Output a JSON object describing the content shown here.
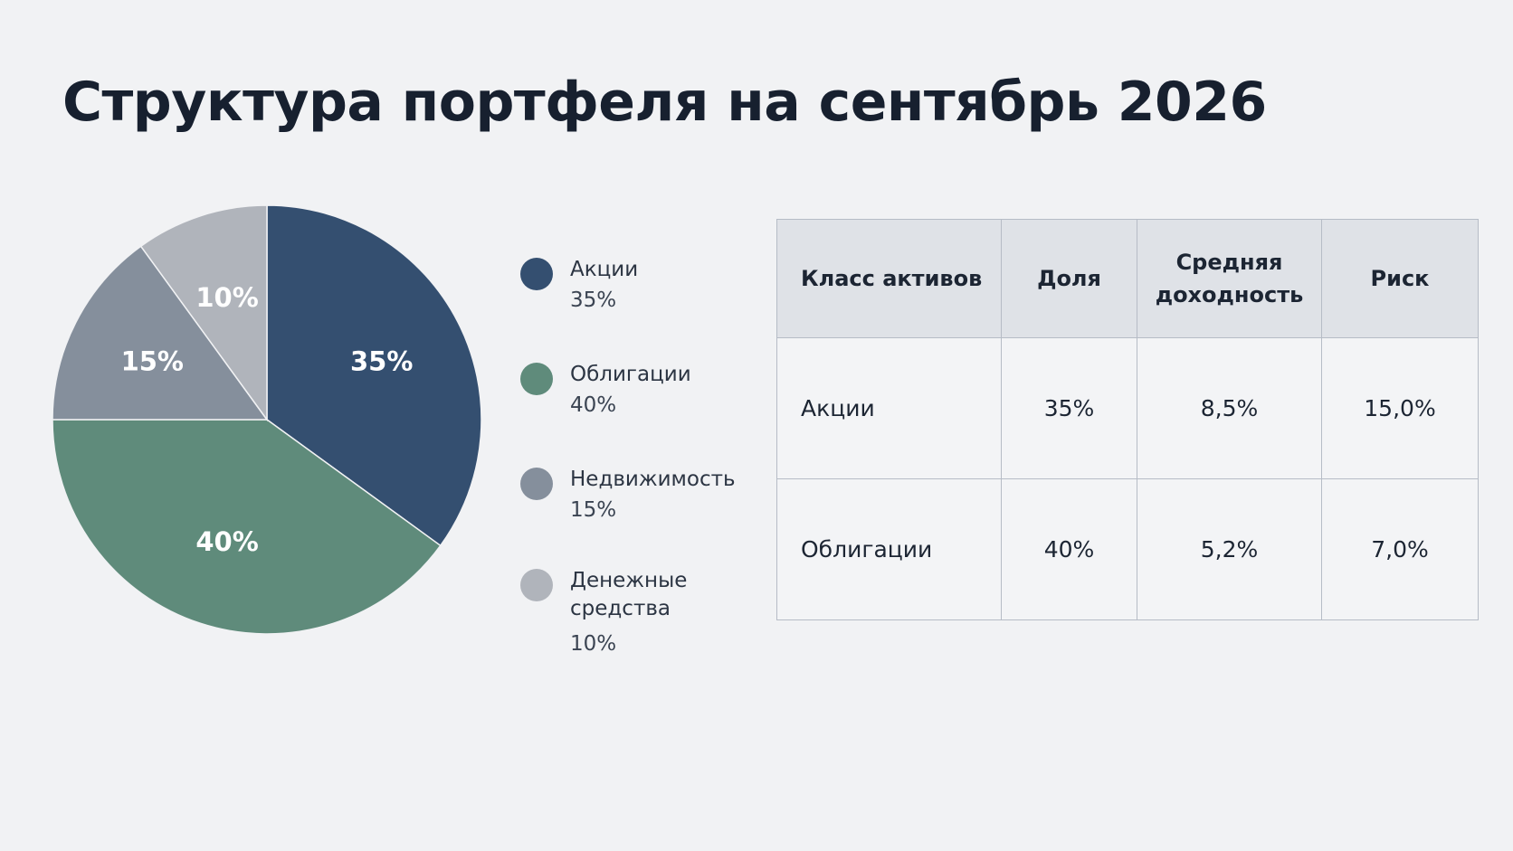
{
  "title": "Структура портфеля на сентябрь 2026",
  "chart_data": {
    "type": "pie",
    "title": "",
    "slices": [
      {
        "label": "Акции",
        "value": 35,
        "value_label": "35%",
        "color": "#344f70"
      },
      {
        "label": "Облигации",
        "value": 40,
        "value_label": "40%",
        "color": "#5f8b7b"
      },
      {
        "label": "Недвижимость",
        "value": 15,
        "value_label": "15%",
        "color": "#858f9c"
      },
      {
        "label": "Денежные средства",
        "value": 10,
        "value_label": "10%",
        "color": "#b0b4bb"
      }
    ],
    "start_angle_deg": 0,
    "direction": "clockwise",
    "legend_position": "right"
  },
  "table": {
    "headers": [
      "Класс активов",
      "Доля",
      "Средняя доходность",
      "Риск"
    ],
    "rows": [
      [
        "Акции",
        "35%",
        "8,5%",
        "15,0%"
      ],
      [
        "Облигации",
        "40%",
        "5,2%",
        "7,0%"
      ]
    ]
  }
}
